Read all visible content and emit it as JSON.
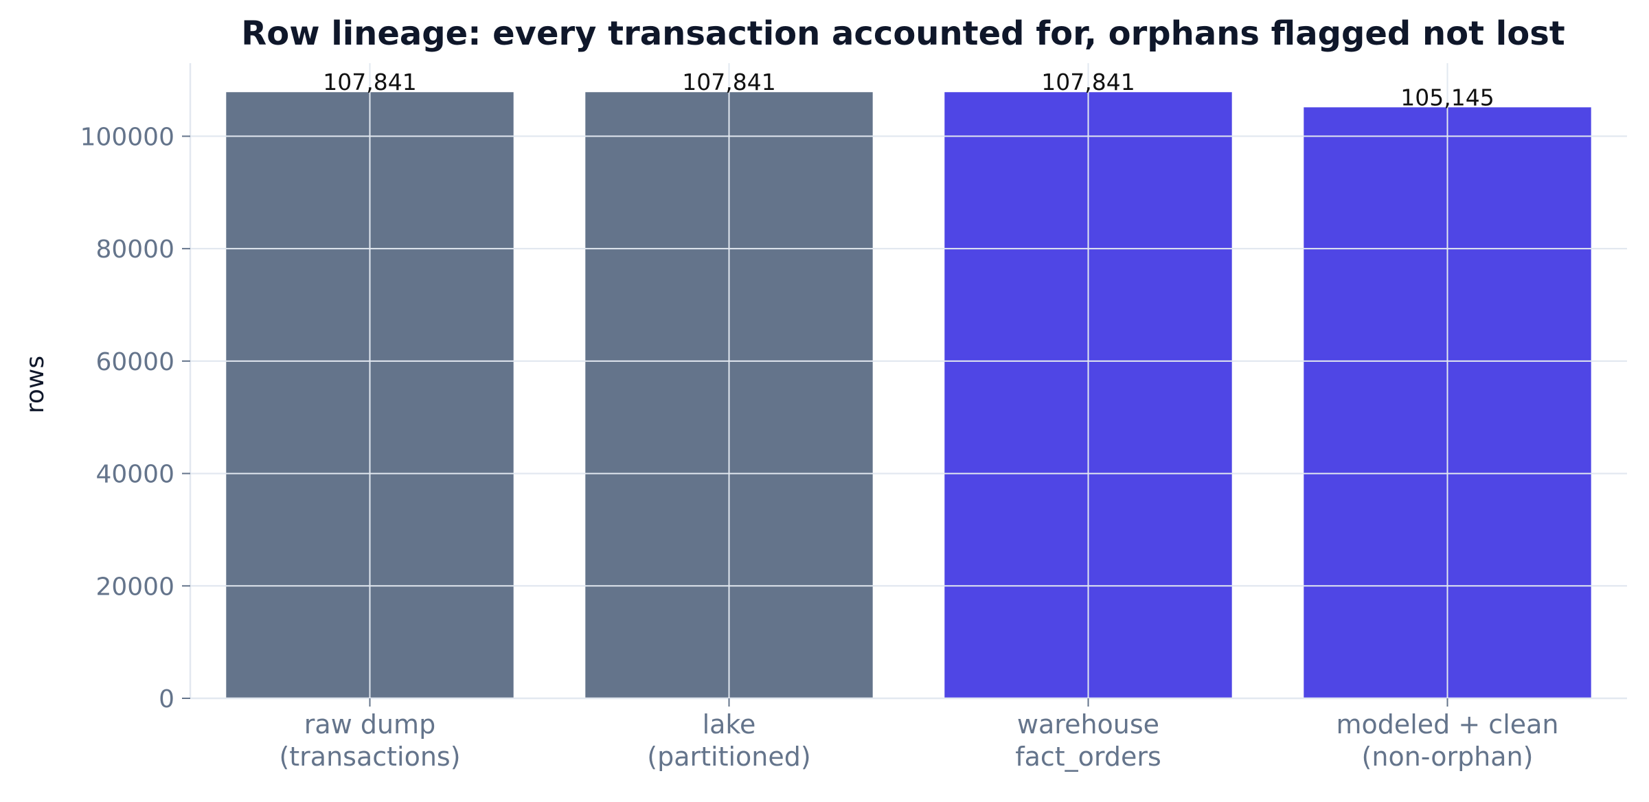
{
  "chart_data": {
    "type": "bar",
    "title": "Row lineage: every transaction accounted for, orphans flagged not lost",
    "xlabel": "",
    "ylabel": "rows",
    "categories": [
      [
        "raw dump",
        "(transactions)"
      ],
      [
        "lake",
        "(partitioned)"
      ],
      [
        "warehouse",
        "fact_orders"
      ],
      [
        "modeled + clean",
        "(non-orphan)"
      ]
    ],
    "values": [
      107841,
      107841,
      107841,
      105145
    ],
    "value_labels": [
      "107,841",
      "107,841",
      "107,841",
      "105,145"
    ],
    "bar_colors": [
      "#64748b",
      "#64748b",
      "#4f46e5",
      "#4f46e5"
    ],
    "ylim": [
      0,
      113000
    ],
    "yticks": [
      0,
      20000,
      40000,
      60000,
      80000,
      100000
    ],
    "ytick_labels": [
      "0",
      "20000",
      "40000",
      "60000",
      "80000",
      "100000"
    ],
    "grid": true,
    "colors": {
      "grid": "#e2e8f0",
      "axis": "#e2e8f0",
      "tick_text": "#64748b",
      "title": "#0f172a"
    }
  }
}
